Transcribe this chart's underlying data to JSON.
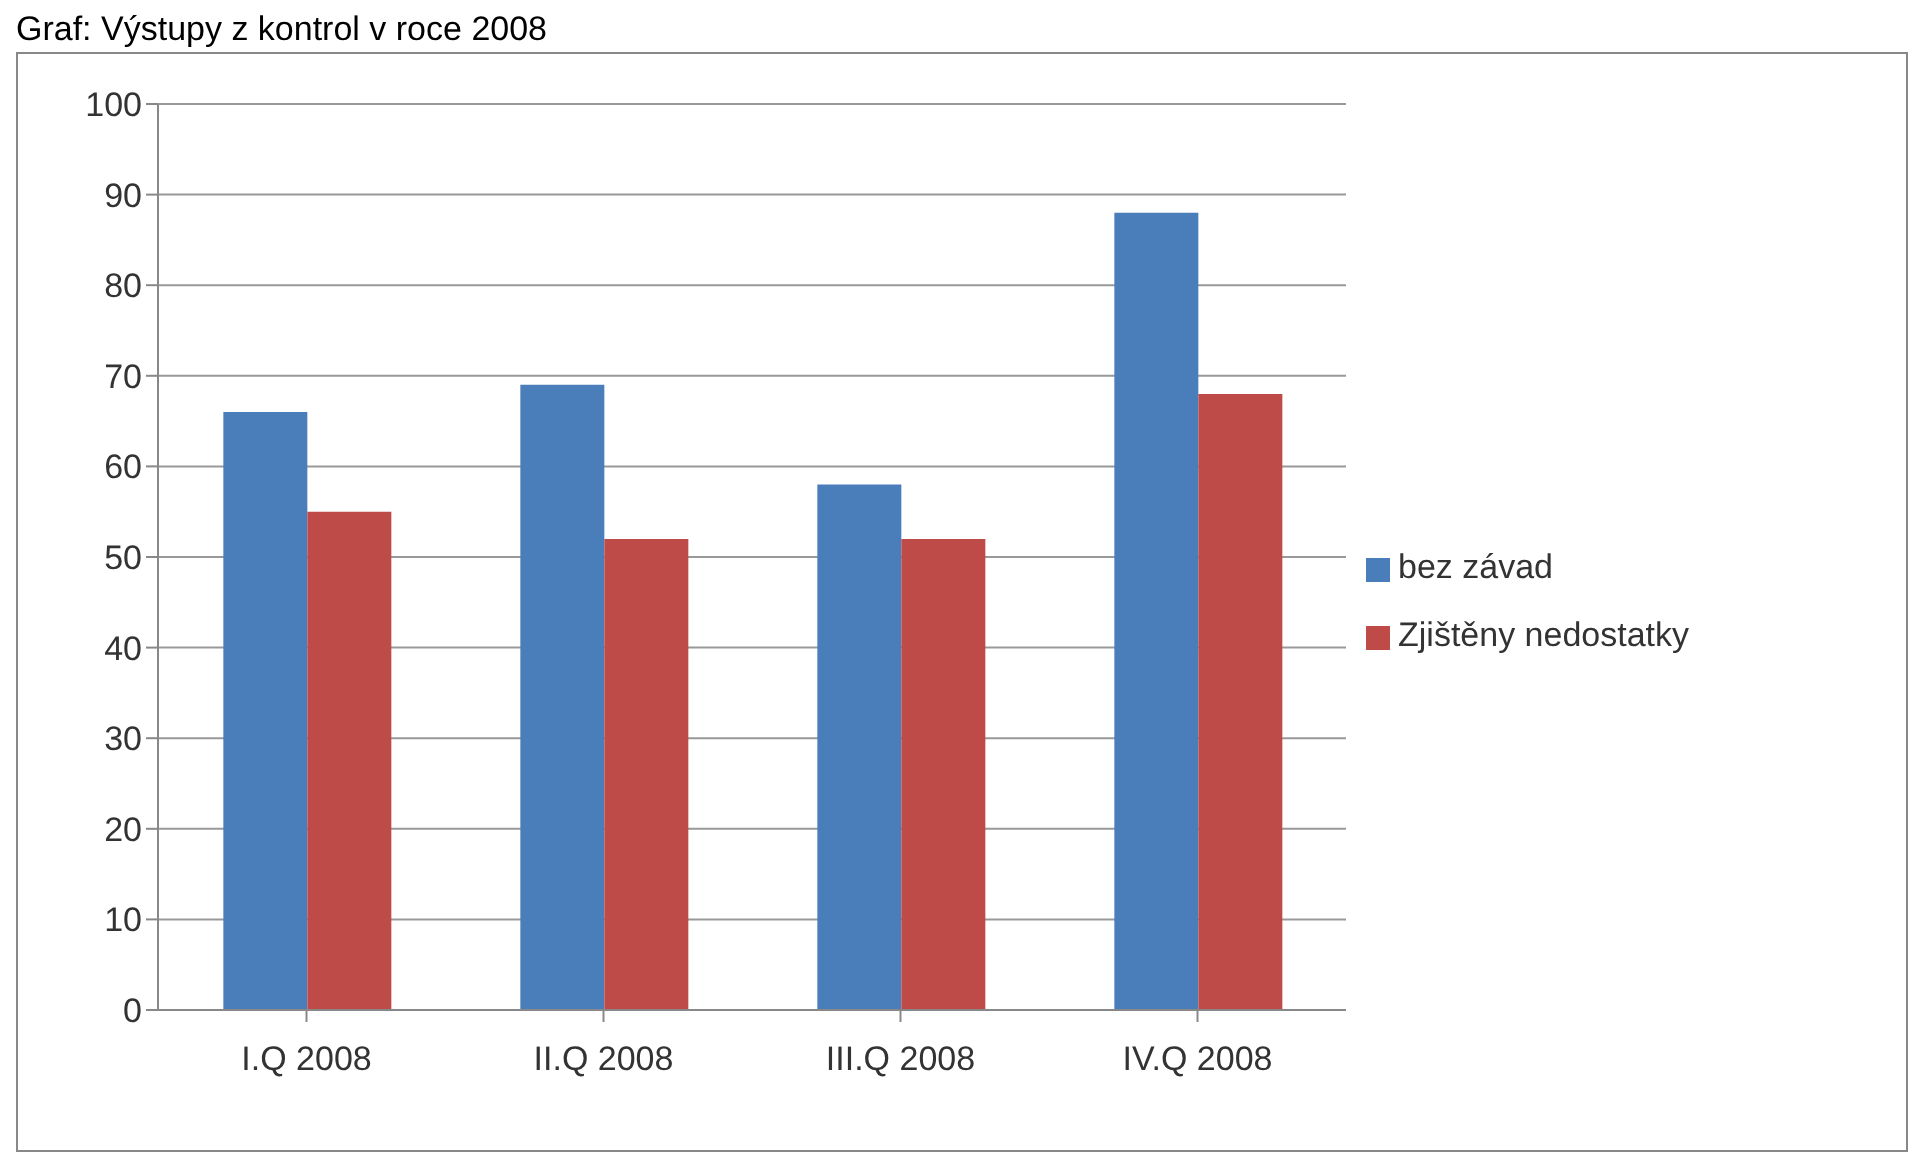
{
  "chart_data": {
    "type": "bar",
    "title": "Graf: Výstupy z kontrol v roce 2008",
    "categories": [
      "I.Q 2008",
      "II.Q 2008",
      "III.Q 2008",
      "IV.Q 2008"
    ],
    "series": [
      {
        "name": "bez závad",
        "color": "#4a7ebb",
        "values": [
          66,
          69,
          58,
          88
        ]
      },
      {
        "name": "Zjištěny nedostatky",
        "color": "#be4b48",
        "values": [
          55,
          52,
          52,
          68
        ]
      }
    ],
    "ylim": [
      0,
      100
    ],
    "yticks": [
      0,
      10,
      20,
      30,
      40,
      50,
      60,
      70,
      80,
      90,
      100
    ],
    "grid": "y",
    "legend": "right"
  }
}
